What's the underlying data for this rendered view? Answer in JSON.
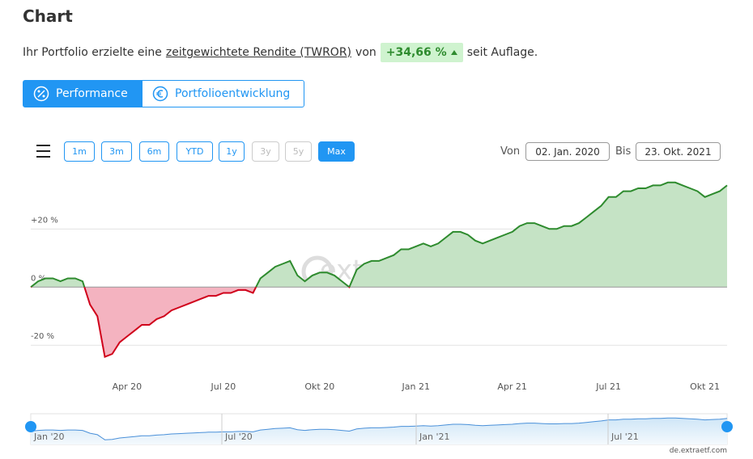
{
  "header": {
    "title": "Chart",
    "intro_before": "Ihr Portfolio erzielte eine",
    "intro_link": "zeitgewichtete Rendite (TWROR)",
    "intro_mid": "von",
    "return_badge": "+34,66 %",
    "intro_after": "seit Auflage."
  },
  "tabs": [
    "Performance",
    "Portfolioentwicklung"
  ],
  "range_buttons": [
    "1m",
    "3m",
    "6m",
    "YTD",
    "1y",
    "3y",
    "5y",
    "Max"
  ],
  "date_range": {
    "from_label": "Von",
    "from": "02. Jan. 2020",
    "to_label": "Bis",
    "to": "23. Okt. 2021"
  },
  "chart_data": {
    "type": "area",
    "categories": [
      null,
      null,
      null,
      null,
      null,
      null,
      null,
      null,
      null,
      null,
      null,
      null,
      null,
      "Apr 20",
      null,
      null,
      null,
      null,
      null,
      null,
      null,
      null,
      null,
      null,
      null,
      null,
      "Jul 20",
      null,
      null,
      null,
      null,
      null,
      null,
      null,
      null,
      null,
      null,
      null,
      null,
      "Okt 20",
      null,
      null,
      null,
      null,
      null,
      null,
      null,
      null,
      null,
      null,
      null,
      null,
      "Jan 21",
      null,
      null,
      null,
      null,
      null,
      null,
      null,
      null,
      null,
      null,
      null,
      null,
      "Apr 21",
      null,
      null,
      null,
      null,
      null,
      null,
      null,
      null,
      null,
      null,
      null,
      null,
      "Jul 21",
      null,
      null,
      null,
      null,
      null,
      null,
      null,
      null,
      null,
      null,
      null,
      null,
      "Okt 21",
      null,
      null,
      null
    ],
    "values": [
      0,
      2,
      3,
      3,
      2,
      3,
      3,
      2,
      -6,
      -10,
      -24,
      -23,
      -19,
      -17,
      -15,
      -13,
      -13,
      -11,
      -10,
      -8,
      -7,
      -6,
      -5,
      -4,
      -3,
      -3,
      -2,
      -2,
      -1,
      -1,
      -2,
      3,
      5,
      7,
      8,
      9,
      4,
      2,
      4,
      5,
      5,
      4,
      2,
      0,
      6,
      8,
      9,
      9,
      10,
      11,
      13,
      13,
      14,
      15,
      14,
      15,
      17,
      19,
      19,
      18,
      16,
      15,
      16,
      17,
      18,
      19,
      21,
      22,
      22,
      21,
      20,
      20,
      21,
      21,
      22,
      24,
      26,
      28,
      31,
      31,
      33,
      33,
      34,
      34,
      35,
      35,
      36,
      36,
      35,
      34,
      33,
      31,
      32,
      33,
      35
    ],
    "ylim": [
      -28,
      39
    ],
    "yticks": [
      {
        "value": 20,
        "label": "+20 %"
      },
      {
        "value": 0,
        "label": "0 %"
      },
      {
        "value": -20,
        "label": "-20 %"
      }
    ],
    "grid": true,
    "positive_color": "#2e8b2e",
    "positive_fill": "#c5e3c5",
    "negative_color": "#d0021b",
    "negative_fill": "#f4b3c0"
  },
  "navigator": {
    "labels": [
      "Jan '20",
      "Jul '20",
      "Jan '21",
      "Jul '21"
    ]
  },
  "watermark": "extraETF",
  "credit": "de.extraetf.com"
}
